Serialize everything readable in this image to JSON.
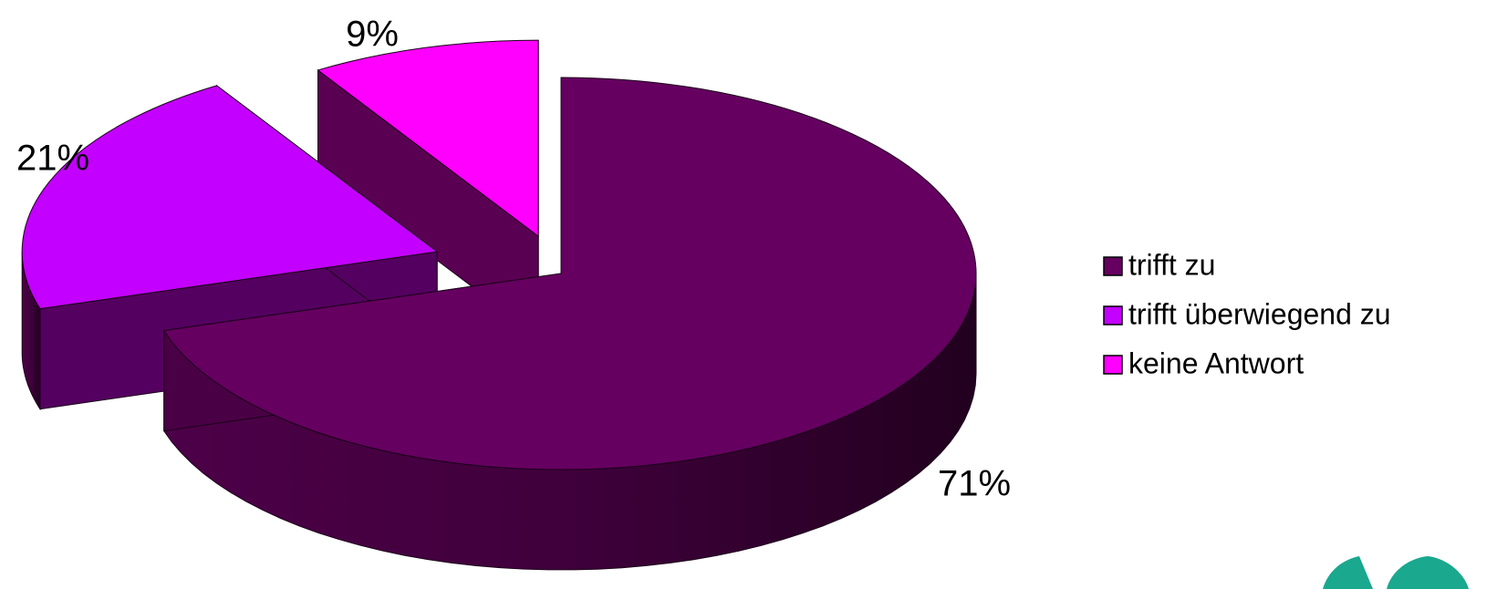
{
  "chart_data": {
    "type": "pie",
    "variant": "3d-exploded",
    "title": "",
    "categories": [
      "trifft zu",
      "trifft überwiegend zu",
      "keine Antwort"
    ],
    "values": [
      71,
      21,
      9
    ],
    "unit": "%",
    "data_labels": [
      "71%",
      "21%",
      "9%"
    ],
    "colors": [
      "#650060",
      "#c300ff",
      "#ff00ff"
    ],
    "side_colors": [
      "#4a0045",
      "#540060",
      "#5a0052"
    ],
    "legend": {
      "position": "right"
    }
  }
}
